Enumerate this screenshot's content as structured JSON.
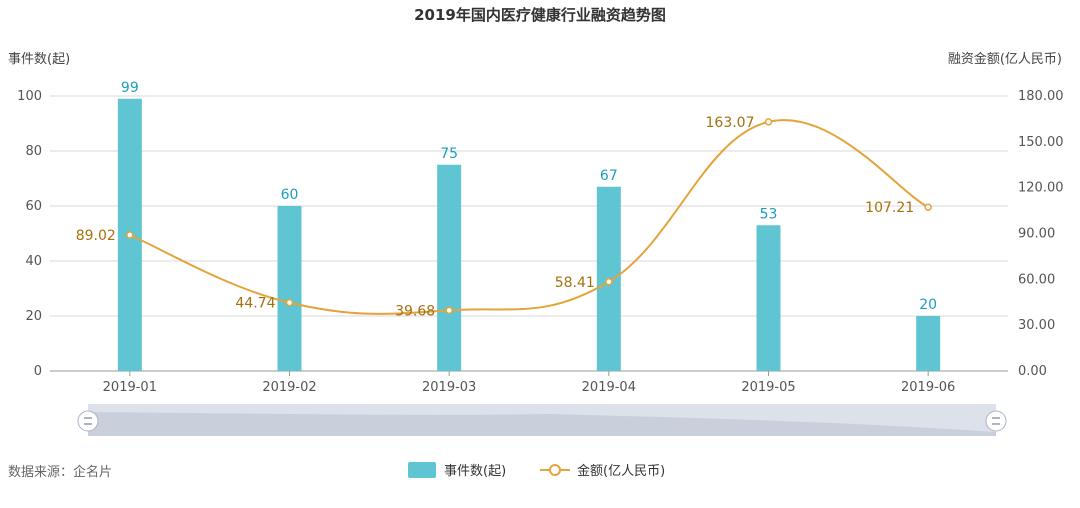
{
  "chart_data": {
    "type": "bar",
    "title": "2019年国内医疗健康行业融资趋势图",
    "categories": [
      "2019-01",
      "2019-02",
      "2019-03",
      "2019-04",
      "2019-05",
      "2019-06"
    ],
    "ylabel_left": "事件数(起)",
    "ylabel_right": "融资金额(亿人民币)",
    "ylim_left": [
      0,
      100
    ],
    "yticks_left": [
      "0",
      "20",
      "40",
      "60",
      "80",
      "100"
    ],
    "ylim_right": [
      0,
      180
    ],
    "yticks_right": [
      "0.00",
      "30.00",
      "60.00",
      "90.00",
      "120.00",
      "150.00",
      "180.00"
    ],
    "grid": true,
    "legend_position": "bottom",
    "series": [
      {
        "name": "事件数(起)",
        "type": "bar",
        "axis": "left",
        "color": "#5fc5d3",
        "label_color": "#1a9fc0",
        "values": [
          99,
          60,
          75,
          67,
          53,
          20
        ],
        "labels": [
          "99",
          "60",
          "75",
          "67",
          "53",
          "20"
        ]
      },
      {
        "name": "金额(亿人民币)",
        "type": "line",
        "axis": "right",
        "smooth": true,
        "color": "#e4a43a",
        "label_color": "#a6700d",
        "values": [
          89.02,
          44.74,
          39.68,
          58.41,
          163.07,
          107.21
        ],
        "labels": [
          "89.02",
          "44.74",
          "39.68",
          "58.41",
          "163.07",
          "107.21"
        ]
      }
    ]
  },
  "source_text": "数据来源：企名片",
  "zoom_slider": {
    "start_icon": "slider-handle-icon",
    "end_icon": "slider-handle-icon"
  }
}
